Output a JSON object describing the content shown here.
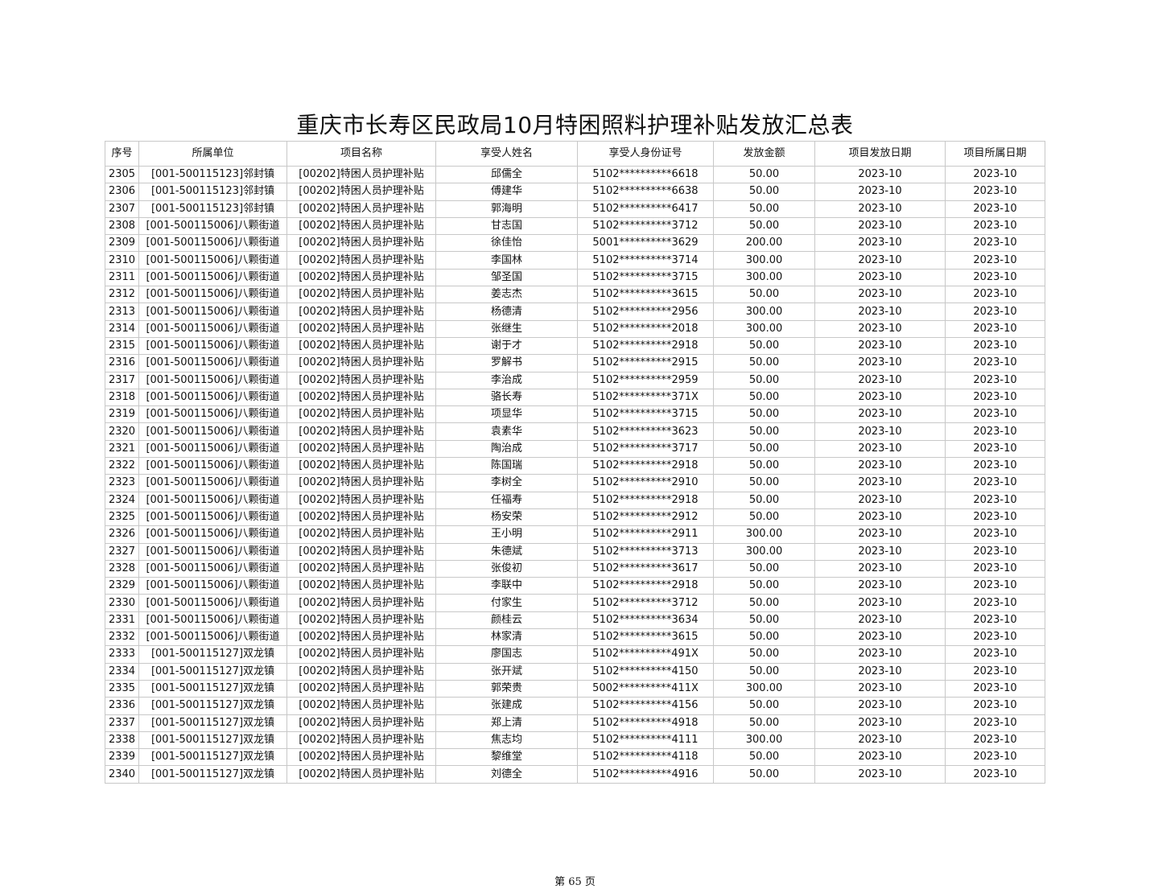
{
  "title": "重庆市长寿区民政局10月特困照料护理补贴发放汇总表",
  "columns": [
    "序号",
    "所属单位",
    "项目名称",
    "享受人姓名",
    "享受人身份证号",
    "发放金额",
    "项目发放日期",
    "项目所属日期"
  ],
  "rows": [
    [
      "2305",
      "[001-500115123]邻封镇",
      "[00202]特困人员护理补贴",
      "邱儒全",
      "5102**********6618",
      "50.00",
      "2023-10",
      "2023-10"
    ],
    [
      "2306",
      "[001-500115123]邻封镇",
      "[00202]特困人员护理补贴",
      "傅建华",
      "5102**********6638",
      "50.00",
      "2023-10",
      "2023-10"
    ],
    [
      "2307",
      "[001-500115123]邻封镇",
      "[00202]特困人员护理补贴",
      "郭海明",
      "5102**********6417",
      "50.00",
      "2023-10",
      "2023-10"
    ],
    [
      "2308",
      "[001-500115006]八颗街道",
      "[00202]特困人员护理补贴",
      "甘志国",
      "5102**********3712",
      "50.00",
      "2023-10",
      "2023-10"
    ],
    [
      "2309",
      "[001-500115006]八颗街道",
      "[00202]特困人员护理补贴",
      "徐佳怡",
      "5001**********3629",
      "200.00",
      "2023-10",
      "2023-10"
    ],
    [
      "2310",
      "[001-500115006]八颗街道",
      "[00202]特困人员护理补贴",
      "李国林",
      "5102**********3714",
      "300.00",
      "2023-10",
      "2023-10"
    ],
    [
      "2311",
      "[001-500115006]八颗街道",
      "[00202]特困人员护理补贴",
      "邹圣国",
      "5102**********3715",
      "300.00",
      "2023-10",
      "2023-10"
    ],
    [
      "2312",
      "[001-500115006]八颗街道",
      "[00202]特困人员护理补贴",
      "姜志杰",
      "5102**********3615",
      "50.00",
      "2023-10",
      "2023-10"
    ],
    [
      "2313",
      "[001-500115006]八颗街道",
      "[00202]特困人员护理补贴",
      "杨德清",
      "5102**********2956",
      "300.00",
      "2023-10",
      "2023-10"
    ],
    [
      "2314",
      "[001-500115006]八颗街道",
      "[00202]特困人员护理补贴",
      "张继生",
      "5102**********2018",
      "300.00",
      "2023-10",
      "2023-10"
    ],
    [
      "2315",
      "[001-500115006]八颗街道",
      "[00202]特困人员护理补贴",
      "谢于才",
      "5102**********2918",
      "50.00",
      "2023-10",
      "2023-10"
    ],
    [
      "2316",
      "[001-500115006]八颗街道",
      "[00202]特困人员护理补贴",
      "罗解书",
      "5102**********2915",
      "50.00",
      "2023-10",
      "2023-10"
    ],
    [
      "2317",
      "[001-500115006]八颗街道",
      "[00202]特困人员护理补贴",
      "李治成",
      "5102**********2959",
      "50.00",
      "2023-10",
      "2023-10"
    ],
    [
      "2318",
      "[001-500115006]八颗街道",
      "[00202]特困人员护理补贴",
      "骆长寿",
      "5102**********371X",
      "50.00",
      "2023-10",
      "2023-10"
    ],
    [
      "2319",
      "[001-500115006]八颗街道",
      "[00202]特困人员护理补贴",
      "项显华",
      "5102**********3715",
      "50.00",
      "2023-10",
      "2023-10"
    ],
    [
      "2320",
      "[001-500115006]八颗街道",
      "[00202]特困人员护理补贴",
      "袁素华",
      "5102**********3623",
      "50.00",
      "2023-10",
      "2023-10"
    ],
    [
      "2321",
      "[001-500115006]八颗街道",
      "[00202]特困人员护理补贴",
      "陶治成",
      "5102**********3717",
      "50.00",
      "2023-10",
      "2023-10"
    ],
    [
      "2322",
      "[001-500115006]八颗街道",
      "[00202]特困人员护理补贴",
      "陈国瑞",
      "5102**********2918",
      "50.00",
      "2023-10",
      "2023-10"
    ],
    [
      "2323",
      "[001-500115006]八颗街道",
      "[00202]特困人员护理补贴",
      "李树全",
      "5102**********2910",
      "50.00",
      "2023-10",
      "2023-10"
    ],
    [
      "2324",
      "[001-500115006]八颗街道",
      "[00202]特困人员护理补贴",
      "任福寿",
      "5102**********2918",
      "50.00",
      "2023-10",
      "2023-10"
    ],
    [
      "2325",
      "[001-500115006]八颗街道",
      "[00202]特困人员护理补贴",
      "杨安荣",
      "5102**********2912",
      "50.00",
      "2023-10",
      "2023-10"
    ],
    [
      "2326",
      "[001-500115006]八颗街道",
      "[00202]特困人员护理补贴",
      "王小明",
      "5102**********2911",
      "300.00",
      "2023-10",
      "2023-10"
    ],
    [
      "2327",
      "[001-500115006]八颗街道",
      "[00202]特困人员护理补贴",
      "朱德斌",
      "5102**********3713",
      "300.00",
      "2023-10",
      "2023-10"
    ],
    [
      "2328",
      "[001-500115006]八颗街道",
      "[00202]特困人员护理补贴",
      "张俊初",
      "5102**********3617",
      "50.00",
      "2023-10",
      "2023-10"
    ],
    [
      "2329",
      "[001-500115006]八颗街道",
      "[00202]特困人员护理补贴",
      "李联中",
      "5102**********2918",
      "50.00",
      "2023-10",
      "2023-10"
    ],
    [
      "2330",
      "[001-500115006]八颗街道",
      "[00202]特困人员护理补贴",
      "付家生",
      "5102**********3712",
      "50.00",
      "2023-10",
      "2023-10"
    ],
    [
      "2331",
      "[001-500115006]八颗街道",
      "[00202]特困人员护理补贴",
      "颜桂云",
      "5102**********3634",
      "50.00",
      "2023-10",
      "2023-10"
    ],
    [
      "2332",
      "[001-500115006]八颗街道",
      "[00202]特困人员护理补贴",
      "林家清",
      "5102**********3615",
      "50.00",
      "2023-10",
      "2023-10"
    ],
    [
      "2333",
      "[001-500115127]双龙镇",
      "[00202]特困人员护理补贴",
      "廖国志",
      "5102**********491X",
      "50.00",
      "2023-10",
      "2023-10"
    ],
    [
      "2334",
      "[001-500115127]双龙镇",
      "[00202]特困人员护理补贴",
      "张开斌",
      "5102**********4150",
      "50.00",
      "2023-10",
      "2023-10"
    ],
    [
      "2335",
      "[001-500115127]双龙镇",
      "[00202]特困人员护理补贴",
      "郭荣贵",
      "5002**********411X",
      "300.00",
      "2023-10",
      "2023-10"
    ],
    [
      "2336",
      "[001-500115127]双龙镇",
      "[00202]特困人员护理补贴",
      "张建成",
      "5102**********4156",
      "50.00",
      "2023-10",
      "2023-10"
    ],
    [
      "2337",
      "[001-500115127]双龙镇",
      "[00202]特困人员护理补贴",
      "郑上清",
      "5102**********4918",
      "50.00",
      "2023-10",
      "2023-10"
    ],
    [
      "2338",
      "[001-500115127]双龙镇",
      "[00202]特困人员护理补贴",
      "焦志均",
      "5102**********4111",
      "300.00",
      "2023-10",
      "2023-10"
    ],
    [
      "2339",
      "[001-500115127]双龙镇",
      "[00202]特困人员护理补贴",
      "黎维堂",
      "5102**********4118",
      "50.00",
      "2023-10",
      "2023-10"
    ],
    [
      "2340",
      "[001-500115127]双龙镇",
      "[00202]特困人员护理补贴",
      "刘德全",
      "5102**********4916",
      "50.00",
      "2023-10",
      "2023-10"
    ]
  ],
  "footer": "第 65 页"
}
